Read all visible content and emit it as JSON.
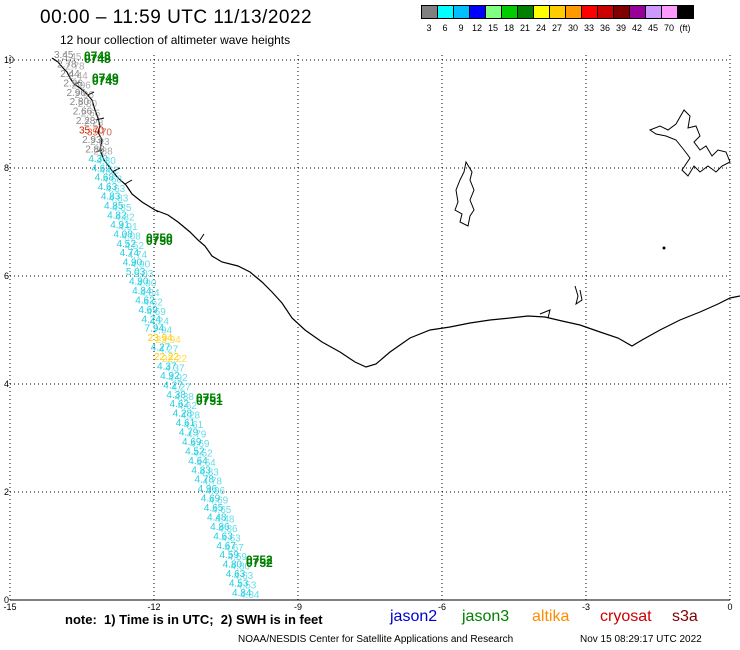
{
  "title": "00:00 – 11:59 UTC 11/13/2022",
  "subtitle": "12 hour collection of altimeter wave heights",
  "legend": {
    "colors": [
      "#808080",
      "#00ffff",
      "#00bfff",
      "#0000ff",
      "#80ff80",
      "#00cc00",
      "#008000",
      "#ffff00",
      "#ffcc00",
      "#ff9900",
      "#ff0000",
      "#cc0000",
      "#800000",
      "#990099",
      "#cc99ff",
      "#ff99ff",
      "#000000"
    ],
    "labels": [
      "3",
      "6",
      "9",
      "12",
      "15",
      "18",
      "21",
      "24",
      "27",
      "30",
      "33",
      "36",
      "39",
      "42",
      "45",
      "70"
    ],
    "unit": "(ft)"
  },
  "axes": {
    "x_ticks": [
      "-15",
      "-12",
      "-9",
      "-6",
      "-3",
      "0"
    ],
    "y_ticks": [
      "0",
      "2",
      "4",
      "6",
      "8",
      "10"
    ]
  },
  "track_labels": {
    "pass_ids": [
      "0748",
      "0749",
      "0750",
      "0751",
      "0752"
    ],
    "swh_values": [
      "3.45",
      "2.78",
      "2.44",
      "2.96",
      "2.96",
      "2.80",
      "2.66",
      "2.28",
      "35.70",
      "2.93",
      "2.88",
      "4.30",
      "4.62",
      "4.68",
      "4.63",
      "4.83",
      "4.85",
      "4.82",
      "4.91",
      "4.08",
      "4.52",
      "4.74",
      "4.90",
      "5.03",
      "4.90",
      "4.84",
      "4.62",
      "4.69",
      "4.24",
      "7.94",
      "23.94",
      "4.27",
      "22.22",
      "4.37",
      "4.92",
      "4.27",
      "4.38",
      "4.62",
      "4.28",
      "4.61",
      "4.79",
      "4.69",
      "4.52",
      "4.64",
      "4.83",
      "4.78",
      "4.96",
      "4.69",
      "4.65",
      "4.48",
      "4.86",
      "4.63",
      "4.67",
      "4.59",
      "4.80",
      "4.63",
      "4.53",
      "4.84"
    ]
  },
  "footer": {
    "note": "note:  1) Time is in UTC;  2) SWH is in feet",
    "satellites": [
      {
        "name": "jason2",
        "color": "#0000cc"
      },
      {
        "name": "jason3",
        "color": "#008000"
      },
      {
        "name": "altika",
        "color": "#ff8c00"
      },
      {
        "name": "cryosat",
        "color": "#cc0000"
      },
      {
        "name": "s3a",
        "color": "#800000"
      }
    ],
    "credit": "NOAA/NESDIS Center for Satellite Applications and Research",
    "timestamp": "Nov 15 08:29:17 UTC 2022"
  }
}
